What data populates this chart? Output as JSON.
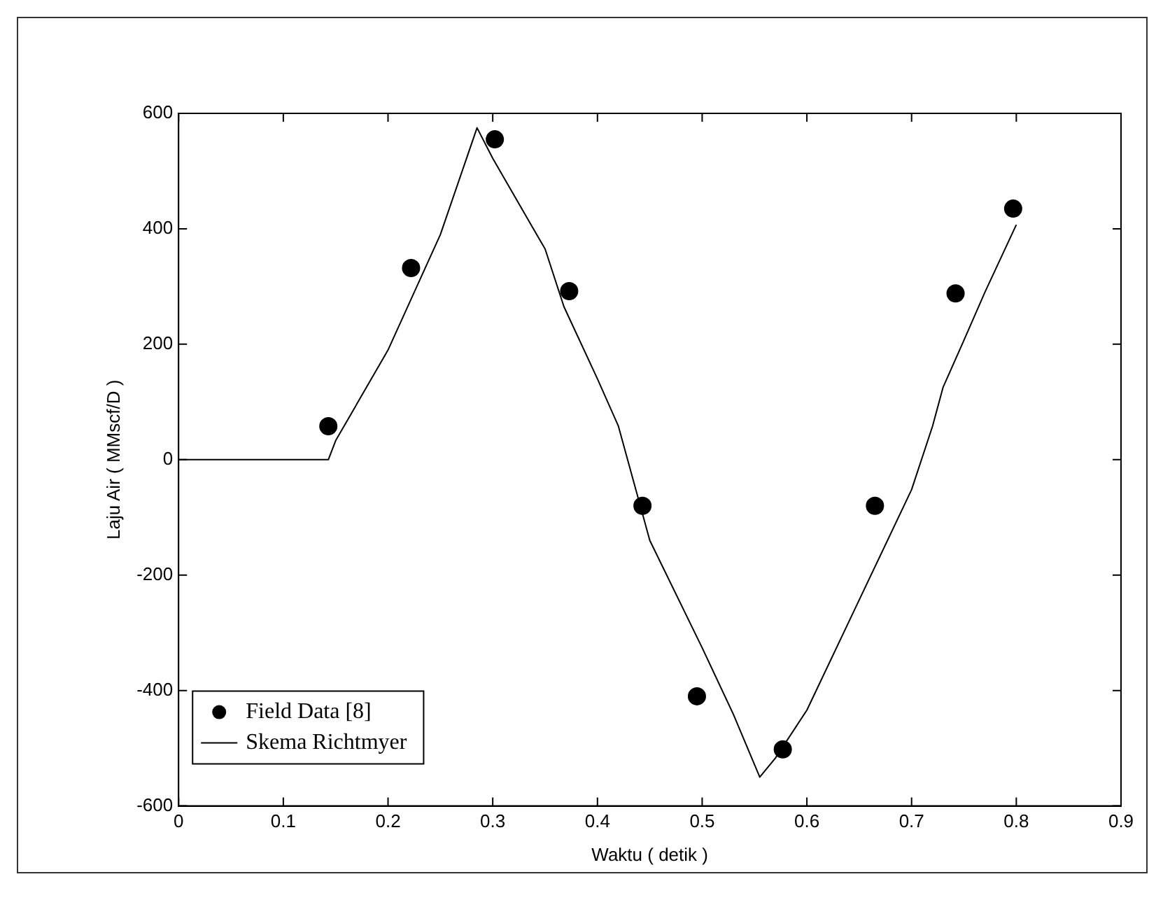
{
  "chart_data": {
    "type": "scatter",
    "xlabel": "Waktu ( detik )",
    "ylabel": "Laju Air ( MMscf/D )",
    "xlim": [
      0,
      0.9
    ],
    "xticks": [
      0,
      0.1,
      0.2,
      0.3,
      0.4,
      0.5,
      0.6,
      0.7,
      0.8,
      0.9
    ],
    "ylim": [
      -600,
      600
    ],
    "yticks": [
      -600,
      -400,
      -200,
      0,
      200,
      400,
      600
    ],
    "grid": false,
    "legend": "bottom left",
    "series": [
      {
        "name": "Field Data [8]",
        "marker": "circle",
        "color": "#000000",
        "x": [
          0.143,
          0.222,
          0.302,
          0.373,
          0.443,
          0.495,
          0.577,
          0.665,
          0.742,
          0.797
        ],
        "values": [
          58,
          332,
          555,
          292,
          -80,
          -410,
          -502,
          -80,
          288,
          435
        ]
      },
      {
        "name": "Skema Richtmyer",
        "type": "line",
        "marker": "none",
        "line_style": "solid",
        "color": "#000000",
        "x": [
          0,
          0.143,
          0.15,
          0.2,
          0.25,
          0.285,
          0.3,
          0.35,
          0.368,
          0.4,
          0.42,
          0.45,
          0.5,
          0.53,
          0.555,
          0.57,
          0.6,
          0.65,
          0.7,
          0.72,
          0.73,
          0.75,
          0.77,
          0.8
        ],
        "values": [
          0,
          0,
          33,
          190,
          390,
          575,
          522,
          365,
          265,
          140,
          58,
          -140,
          -326,
          -442,
          -550,
          -517,
          -434,
          -243,
          -52,
          58,
          125,
          207,
          290,
          407
        ]
      }
    ]
  }
}
